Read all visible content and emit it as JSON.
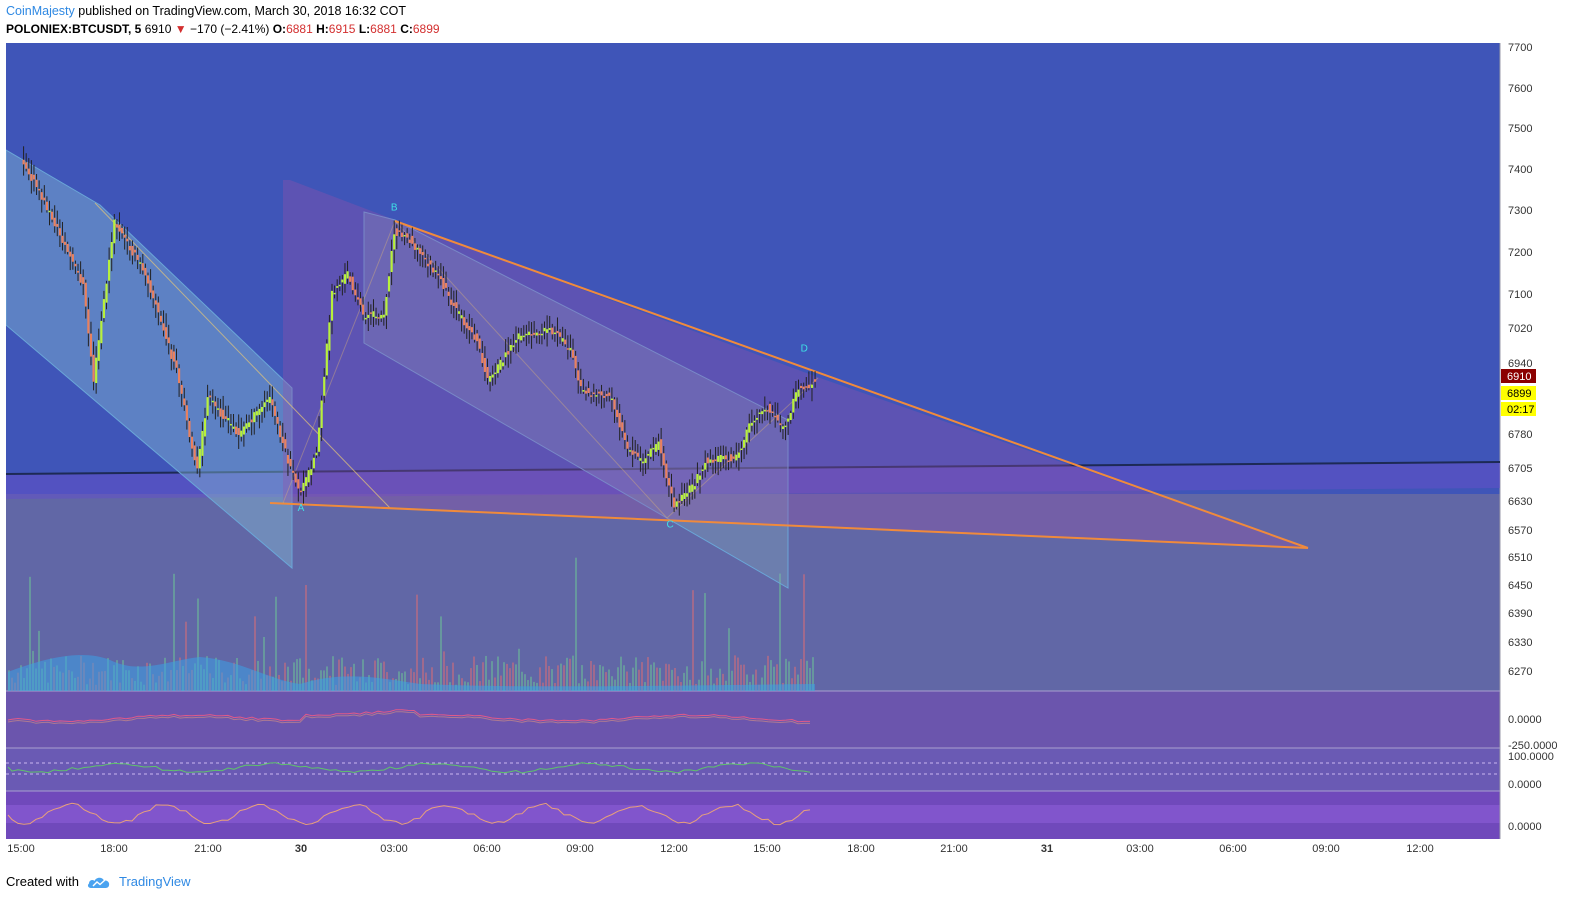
{
  "header": {
    "author": "CoinMajesty",
    "published_text": "published on TradingView.com, March 30, 2018 16:32 COT",
    "symbol": "POLONIEX:BTCUSDT, 5",
    "last": "6910",
    "change": "−170 (−2.41%)",
    "o_label": "O:",
    "o_value": "6881",
    "h_label": "H:",
    "h_value": "6915",
    "l_label": "L:",
    "l_value": "6881",
    "c_label": "C:",
    "c_value": "6899"
  },
  "footer": {
    "created_with": "Created with",
    "brand": "TradingView",
    "logo_icon": "tradingview-cloud-icon"
  },
  "colors": {
    "background": "#3f55b8",
    "bull": "#b8f03c",
    "bear": "#e8815f",
    "pattern_line": "#f08a3c",
    "last_price_badge": "#8b0000",
    "close_badge": "#ffff00"
  },
  "chart_data": {
    "type": "candlestick",
    "x_ticks": [
      "15:00",
      "18:00",
      "21:00",
      "30",
      "03:00",
      "06:00",
      "09:00",
      "12:00",
      "15:00",
      "18:00",
      "21:00",
      "31",
      "03:00",
      "06:00",
      "09:00",
      "12:00"
    ],
    "y_ticks": [
      7700,
      7600,
      7500,
      7400,
      7300,
      7200,
      7100,
      7020,
      6940,
      6860,
      6780,
      6705,
      6630,
      6570,
      6510,
      6450,
      6390,
      6330,
      6270
    ],
    "y_tick_labels": [
      "7700",
      "7600",
      "7500",
      "7400",
      "7300",
      "7200",
      "7100",
      "7020",
      "6940",
      "",
      "6780",
      "6705",
      "6630",
      "6570",
      "6510",
      "6450",
      "6390",
      "6330",
      "6270"
    ],
    "price_badges": {
      "last": "6910",
      "close": "6899",
      "countdown": "02:17"
    },
    "price_path": [
      [
        "29 15:00",
        7430
      ],
      [
        "29 16:00",
        7280
      ],
      [
        "29 17:00",
        7120
      ],
      [
        "29 17:20",
        6900
      ],
      [
        "29 18:00",
        7270
      ],
      [
        "29 19:00",
        7150
      ],
      [
        "29 20:00",
        6920
      ],
      [
        "29 20:40",
        6700
      ],
      [
        "29 21:00",
        6860
      ],
      [
        "29 22:00",
        6780
      ],
      [
        "29 23:00",
        6860
      ],
      [
        "29 23:40",
        6700
      ],
      [
        "30 00:00",
        6650
      ],
      [
        "30 00:30",
        6740
      ],
      [
        "30 01:00",
        7100
      ],
      [
        "30 01:30",
        7150
      ],
      [
        "30 02:00",
        7050
      ],
      [
        "30 02:40",
        7050
      ],
      [
        "30 03:00",
        7250
      ],
      [
        "30 03:30",
        7230
      ],
      [
        "30 04:30",
        7130
      ],
      [
        "30 05:00",
        7060
      ],
      [
        "30 05:40",
        6990
      ],
      [
        "30 06:00",
        6900
      ],
      [
        "30 07:00",
        7000
      ],
      [
        "30 08:00",
        7020
      ],
      [
        "30 08:40",
        6970
      ],
      [
        "30 09:00",
        6880
      ],
      [
        "30 10:00",
        6860
      ],
      [
        "30 10:30",
        6740
      ],
      [
        "30 11:00",
        6720
      ],
      [
        "30 11:30",
        6760
      ],
      [
        "30 12:00",
        6620
      ],
      [
        "30 12:40",
        6670
      ],
      [
        "30 13:00",
        6720
      ],
      [
        "30 14:00",
        6730
      ],
      [
        "30 14:30",
        6810
      ],
      [
        "30 15:00",
        6840
      ],
      [
        "30 15:30",
        6790
      ],
      [
        "30 16:00",
        6880
      ],
      [
        "30 16:20",
        6890
      ],
      [
        "30 16:32",
        6899
      ]
    ],
    "points": [
      {
        "label": "A",
        "time": "30 00:00",
        "price": 6630
      },
      {
        "label": "B",
        "time": "30 03:00",
        "price": 7270
      },
      {
        "label": "C",
        "time": "30 12:00",
        "price": 6600
      },
      {
        "label": "D",
        "time": "30 16:15",
        "price": 6925
      }
    ],
    "horizontal_level": 6705,
    "indicators": [
      {
        "tick_labels": [
          "0.0000",
          "-250.0000"
        ]
      },
      {
        "tick_labels": [
          "100.0000",
          "0.0000"
        ]
      },
      {
        "tick_labels": [
          "0.0000"
        ]
      }
    ]
  }
}
